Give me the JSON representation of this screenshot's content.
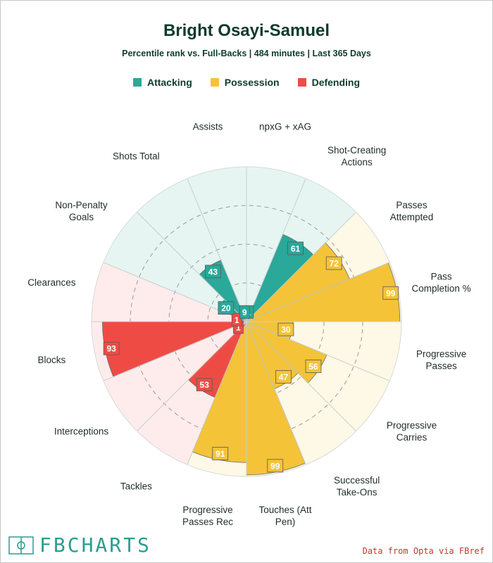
{
  "header": {
    "title": "Bright Osayi-Samuel",
    "subtitle": "Percentile rank vs. Full-Backs | 484 minutes | Last 365 Days"
  },
  "legend": [
    {
      "label": "Attacking",
      "color": "#2aa89a"
    },
    {
      "label": "Possession",
      "color": "#f4c338"
    },
    {
      "label": "Defending",
      "color": "#ef4b45"
    }
  ],
  "chart_data": {
    "type": "polar-bar",
    "title": "Bright Osayi-Samuel",
    "subtitle": "Percentile rank vs. Full-Backs | 484 minutes | Last 365 Days",
    "rlim": [
      0,
      100
    ],
    "gridlines": [
      25,
      50,
      75
    ],
    "categories": [
      {
        "label": "npxG + xAG",
        "value": 1,
        "group": "Attacking"
      },
      {
        "label": "Shot-Creating Actions",
        "value": 61,
        "group": "Attacking"
      },
      {
        "label": "Passes Attempted",
        "value": 72,
        "group": "Possession"
      },
      {
        "label": "Pass Completion %",
        "value": 99,
        "group": "Possession"
      },
      {
        "label": "Progressive Passes",
        "value": 30,
        "group": "Possession"
      },
      {
        "label": "Progressive Carries",
        "value": 56,
        "group": "Possession"
      },
      {
        "label": "Successful Take-Ons",
        "value": 47,
        "group": "Possession"
      },
      {
        "label": "Touches (Att Pen)",
        "value": 99,
        "group": "Possession"
      },
      {
        "label": "Progressive Passes Rec",
        "value": 91,
        "group": "Possession"
      },
      {
        "label": "Tackles",
        "value": 53,
        "group": "Defending"
      },
      {
        "label": "Interceptions",
        "value": 1,
        "group": "Defending"
      },
      {
        "label": "Blocks",
        "value": 93,
        "group": "Defending"
      },
      {
        "label": "Clearances",
        "value": 1,
        "group": "Defending"
      },
      {
        "label": "Non-Penalty Goals",
        "value": 20,
        "group": "Attacking"
      },
      {
        "label": "Shots Total",
        "value": 43,
        "group": "Attacking"
      },
      {
        "label": "Assists",
        "value": 9,
        "group": "Attacking"
      }
    ],
    "group_colors": {
      "Attacking": {
        "bar": "#2aa89a",
        "bg": "#e6f5f2",
        "label_bg": "#2aa89a",
        "label_fg": "#ffffff"
      },
      "Possession": {
        "bar": "#f4c338",
        "bg": "#fef8e6",
        "label_bg": "#f4c338",
        "label_fg": "#ffffff"
      },
      "Defending": {
        "bar": "#ef4b45",
        "bg": "#fdeceb",
        "label_bg": "#ef4b45",
        "label_fg": "#ffffff"
      }
    }
  },
  "footer": {
    "logo_text": "FBCHARTS",
    "credit": "Data from Opta via FBref"
  }
}
